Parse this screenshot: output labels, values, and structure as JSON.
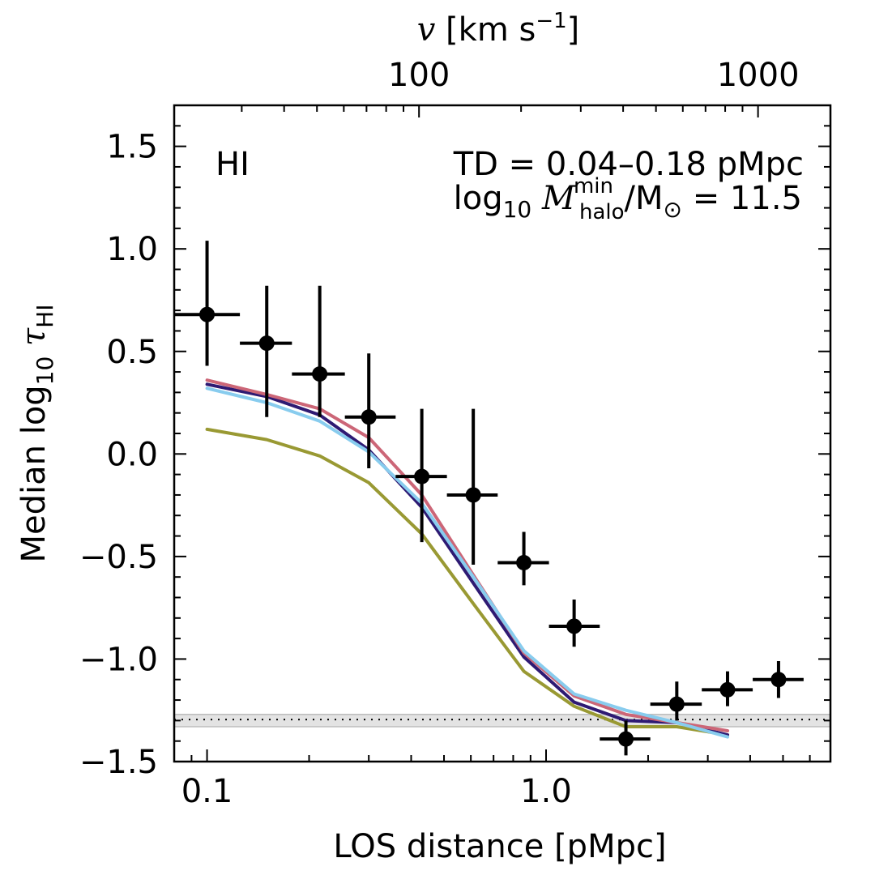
{
  "chart_data": {
    "type": "line",
    "xlabel": "LOS distance [pMpc]",
    "ylabel": "Median log10 τHI",
    "top_axis_label": "v [km s−1]",
    "x_scale": "log",
    "xlim": [
      0.08,
      6.9
    ],
    "ylim": [
      -1.5,
      1.7
    ],
    "x_ticks": [
      {
        "value": 0.1,
        "label": "0.1"
      },
      {
        "value": 1.0,
        "label": "1.0"
      }
    ],
    "y_ticks": [
      {
        "value": 1.5,
        "label": "1.5"
      },
      {
        "value": 1.0,
        "label": "1.0"
      },
      {
        "value": 0.5,
        "label": "0.5"
      },
      {
        "value": 0.0,
        "label": "0.0"
      },
      {
        "value": -0.5,
        "label": "−0.5"
      },
      {
        "value": -1.0,
        "label": "−1.0"
      },
      {
        "value": -1.5,
        "label": "−1.5"
      }
    ],
    "top_ticks": [
      {
        "value": 100,
        "label": "100"
      },
      {
        "value": 1000,
        "label": "1000"
      }
    ],
    "annotations": {
      "ion": "HI",
      "td": "TD = 0.04–0.18 pMpc",
      "mass": "log10 Mhalomin/M⊙ = 11.5"
    },
    "observed": [
      {
        "x": 0.1,
        "xlo": 0.08,
        "xhi": 0.125,
        "y": 0.68,
        "ylo": 0.43,
        "yhi": 1.04
      },
      {
        "x": 0.15,
        "xlo": 0.125,
        "xhi": 0.178,
        "y": 0.54,
        "ylo": 0.18,
        "yhi": 0.82
      },
      {
        "x": 0.215,
        "xlo": 0.178,
        "xhi": 0.255,
        "y": 0.39,
        "ylo": 0.18,
        "yhi": 0.82
      },
      {
        "x": 0.3,
        "xlo": 0.255,
        "xhi": 0.36,
        "y": 0.18,
        "ylo": -0.07,
        "yhi": 0.49
      },
      {
        "x": 0.43,
        "xlo": 0.36,
        "xhi": 0.51,
        "y": -0.11,
        "ylo": -0.43,
        "yhi": 0.22
      },
      {
        "x": 0.61,
        "xlo": 0.51,
        "xhi": 0.72,
        "y": -0.2,
        "ylo": -0.54,
        "yhi": 0.22
      },
      {
        "x": 0.86,
        "xlo": 0.72,
        "xhi": 1.02,
        "y": -0.53,
        "ylo": -0.64,
        "yhi": -0.38
      },
      {
        "x": 1.21,
        "xlo": 1.02,
        "xhi": 1.44,
        "y": -0.84,
        "ylo": -0.94,
        "yhi": -0.71
      },
      {
        "x": 1.72,
        "xlo": 1.44,
        "xhi": 2.03,
        "y": -1.39,
        "ylo": -1.47,
        "yhi": -1.3
      },
      {
        "x": 2.43,
        "xlo": 2.03,
        "xhi": 2.88,
        "y": -1.22,
        "ylo": -1.3,
        "yhi": -1.11
      },
      {
        "x": 3.43,
        "xlo": 2.88,
        "xhi": 4.07,
        "y": -1.15,
        "ylo": -1.23,
        "yhi": -1.06
      },
      {
        "x": 4.85,
        "xlo": 4.07,
        "xhi": 5.75,
        "y": -1.1,
        "ylo": -1.19,
        "yhi": -1.01
      }
    ],
    "series": [
      {
        "color": "#999933",
        "x": [
          0.1,
          0.15,
          0.215,
          0.3,
          0.43,
          0.61,
          0.86,
          1.21,
          1.72,
          2.43,
          3.43
        ],
        "y": [
          0.12,
          0.07,
          -0.01,
          -0.14,
          -0.39,
          -0.73,
          -1.06,
          -1.23,
          -1.33,
          -1.33,
          -1.37
        ]
      },
      {
        "color": "#2e1a73",
        "x": [
          0.1,
          0.15,
          0.215,
          0.3,
          0.43,
          0.61,
          0.86,
          1.21,
          1.72,
          2.43,
          3.43
        ],
        "y": [
          0.34,
          0.28,
          0.19,
          0.02,
          -0.26,
          -0.63,
          -0.99,
          -1.21,
          -1.3,
          -1.31,
          -1.37
        ]
      },
      {
        "color": "#cc6677",
        "x": [
          0.1,
          0.15,
          0.215,
          0.3,
          0.43,
          0.61,
          0.86,
          1.21,
          1.72,
          2.43,
          3.43
        ],
        "y": [
          0.36,
          0.29,
          0.22,
          0.08,
          -0.2,
          -0.59,
          -0.97,
          -1.18,
          -1.27,
          -1.31,
          -1.35
        ]
      },
      {
        "color": "#88ccee",
        "x": [
          0.1,
          0.15,
          0.215,
          0.3,
          0.43,
          0.61,
          0.86,
          1.21,
          1.72,
          2.43,
          3.43
        ],
        "y": [
          0.32,
          0.25,
          0.16,
          0.01,
          -0.24,
          -0.6,
          -0.96,
          -1.17,
          -1.25,
          -1.31,
          -1.38
        ]
      }
    ],
    "reference_line": {
      "y": -1.295,
      "band": [
        -1.33,
        -1.27
      ]
    },
    "grid": false
  }
}
